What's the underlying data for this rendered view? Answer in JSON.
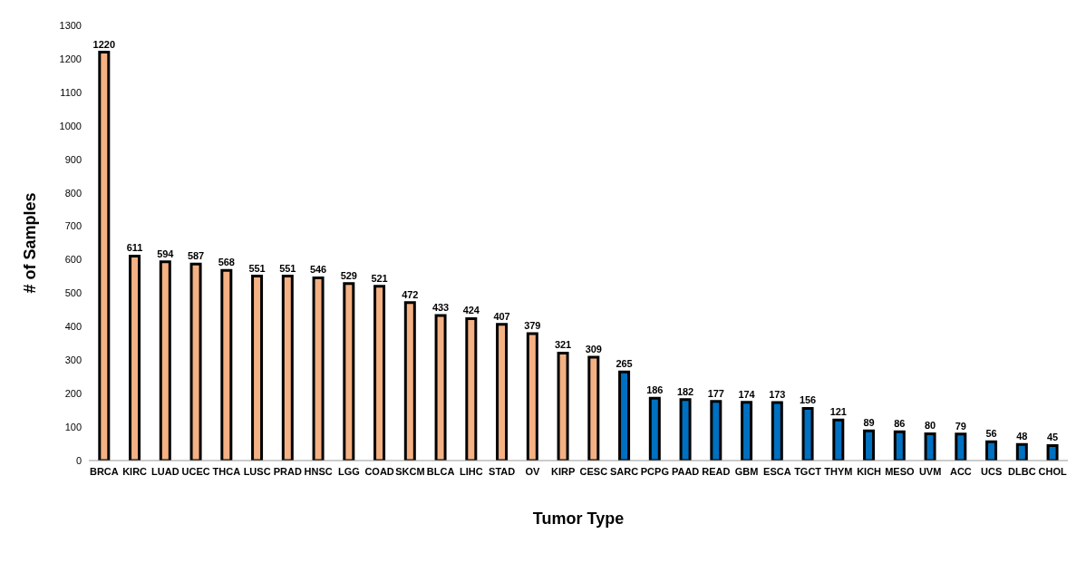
{
  "chart_data": {
    "type": "bar",
    "xlabel": "Tumor Type",
    "ylabel": "# of Samples",
    "categories": [
      "BRCA",
      "KIRC",
      "LUAD",
      "UCEC",
      "THCA",
      "LUSC",
      "PRAD",
      "HNSC",
      "LGG",
      "COAD",
      "SKCM",
      "BLCA",
      "LIHC",
      "STAD",
      "OV",
      "KIRP",
      "CESC",
      "SARC",
      "PCPG",
      "PAAD",
      "READ",
      "GBM",
      "ESCA",
      "TGCT",
      "THYM",
      "KICH",
      "MESO",
      "UVM",
      "ACC",
      "UCS",
      "DLBC",
      "CHOL"
    ],
    "values": [
      1220,
      611,
      594,
      587,
      568,
      551,
      551,
      546,
      529,
      521,
      472,
      433,
      424,
      407,
      379,
      321,
      309,
      265,
      186,
      182,
      177,
      174,
      173,
      156,
      121,
      89,
      86,
      80,
      79,
      56,
      48,
      45
    ],
    "colors": [
      "#f4b183",
      "#f4b183",
      "#f4b183",
      "#f4b183",
      "#f4b183",
      "#f4b183",
      "#f4b183",
      "#f4b183",
      "#f4b183",
      "#f4b183",
      "#f4b183",
      "#f4b183",
      "#f4b183",
      "#f4b183",
      "#f4b183",
      "#f4b183",
      "#f4b183",
      "#0070c0",
      "#0070c0",
      "#0070c0",
      "#0070c0",
      "#0070c0",
      "#0070c0",
      "#0070c0",
      "#0070c0",
      "#0070c0",
      "#0070c0",
      "#0070c0",
      "#0070c0",
      "#0070c0",
      "#0070c0",
      "#0070c0"
    ],
    "ylim": [
      0,
      1300
    ],
    "yticks": [
      0,
      100,
      200,
      300,
      400,
      500,
      600,
      700,
      800,
      900,
      1000,
      1100,
      1200,
      1300
    ],
    "grid": false,
    "data_labels": true
  }
}
